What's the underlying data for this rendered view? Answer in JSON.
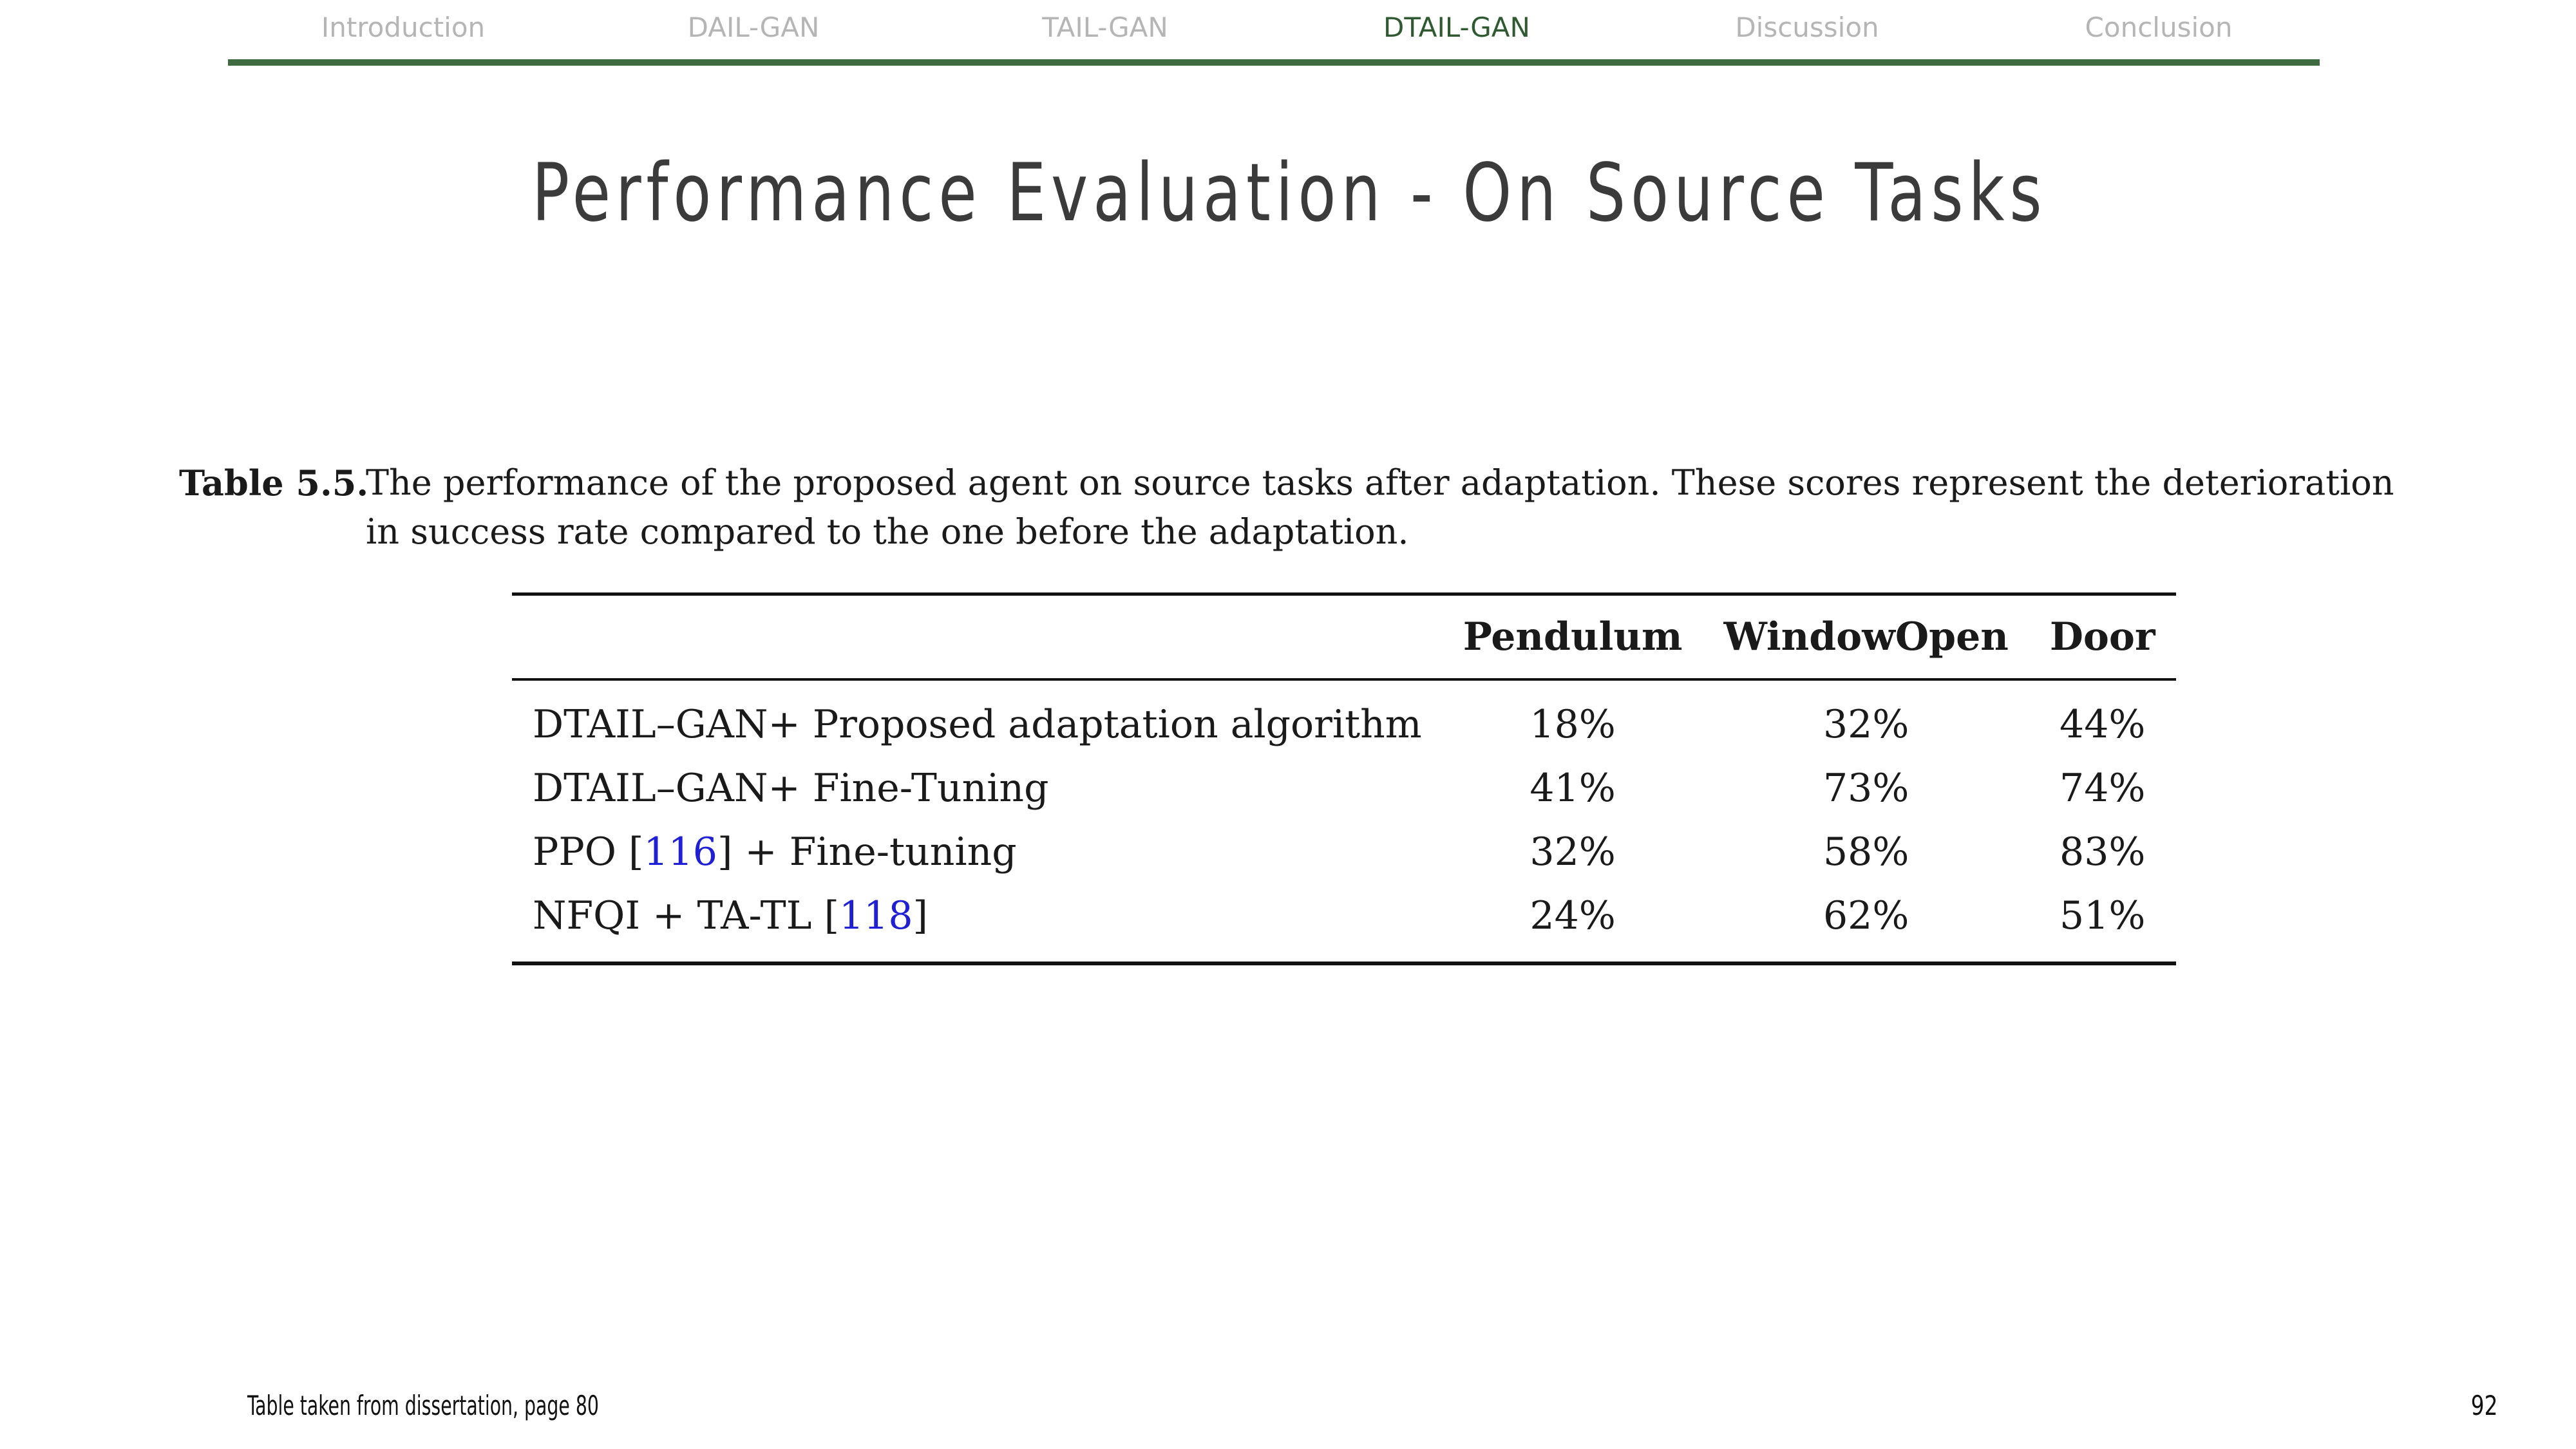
{
  "nav": {
    "items": [
      {
        "label": "Introduction"
      },
      {
        "label": "DAIL-GAN"
      },
      {
        "label": "TAIL-GAN"
      },
      {
        "label": "DTAIL-GAN"
      },
      {
        "label": "Discussion"
      },
      {
        "label": "Conclusion"
      }
    ],
    "active_label": "DTAIL-GAN",
    "accent_color": "#3e6b40"
  },
  "slide": {
    "title": "Performance Evaluation - On Source Tasks"
  },
  "caption": {
    "label": "Table 5.5.",
    "text": "The performance of the proposed agent on source tasks after adaptation. These scores represent the deterioration in success rate compared to the one before the adaptation."
  },
  "table": {
    "headers": [
      "",
      "Pendulum",
      "WindowOpen",
      "Door"
    ],
    "rows": [
      {
        "name_prefix": "DTAIL–GAN+ Proposed adaptation algorithm",
        "ref": "",
        "name_suffix": "",
        "values": [
          "18%",
          "32%",
          "44%"
        ]
      },
      {
        "name_prefix": "DTAIL–GAN+ Fine-Tuning",
        "ref": "",
        "name_suffix": "",
        "values": [
          "41%",
          "73%",
          "74%"
        ]
      },
      {
        "name_prefix": "PPO [",
        "ref": "116",
        "name_suffix": "] + Fine-tuning",
        "values": [
          "32%",
          "58%",
          "83%"
        ]
      },
      {
        "name_prefix": "NFQI + TA-TL [",
        "ref": "118",
        "name_suffix": "]",
        "values": [
          "24%",
          "62%",
          "51%"
        ]
      }
    ],
    "reference_color": "#1f1fd6"
  },
  "footer": {
    "note": "Table taken from dissertation, page 80",
    "page_number": "92"
  }
}
